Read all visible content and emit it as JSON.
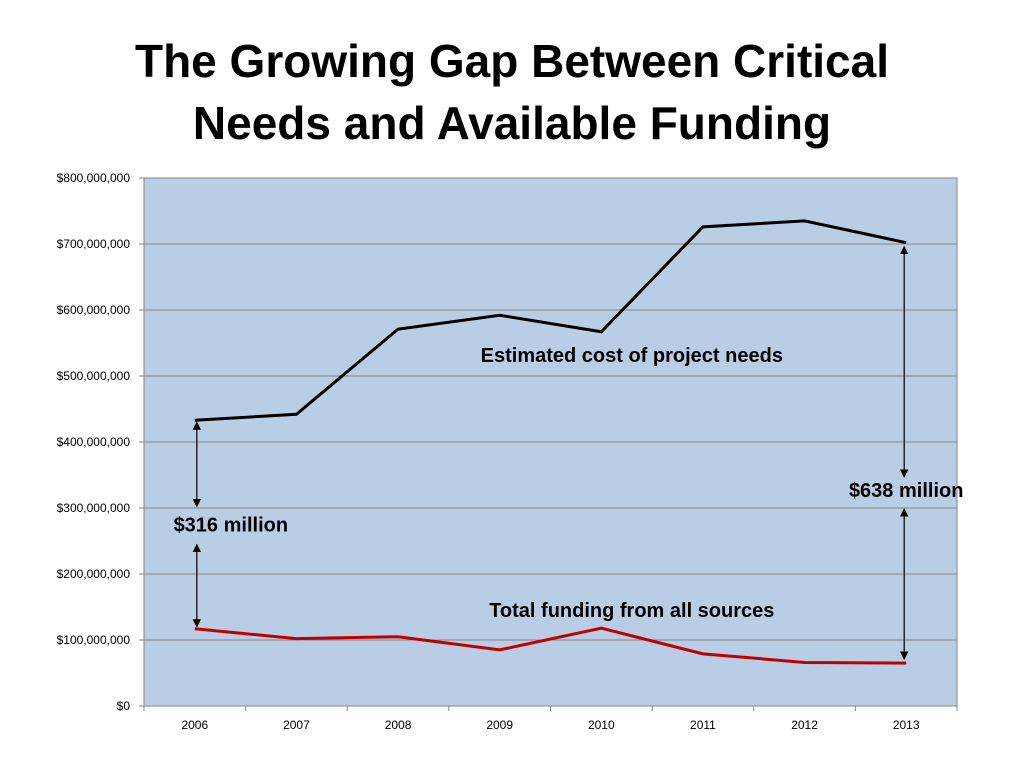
{
  "slide": {
    "title_line1": "The Growing Gap Between Critical",
    "title_line2": "Needs and Available Funding"
  },
  "chart_data": {
    "type": "line",
    "categories": [
      "2006",
      "2007",
      "2008",
      "2009",
      "2010",
      "2011",
      "2012",
      "2013"
    ],
    "series": [
      {
        "name": "Estimated cost of project needs",
        "color": "#000000",
        "values": [
          433000000,
          442000000,
          571000000,
          592000000,
          567000000,
          726000000,
          735000000,
          702000000
        ]
      },
      {
        "name": "Total funding from all sources",
        "color": "#c00000",
        "values": [
          117000000,
          102000000,
          105000000,
          85000000,
          118000000,
          79000000,
          66000000,
          65000000
        ]
      }
    ],
    "ylim": [
      0,
      800000000
    ],
    "yticks": [
      0,
      100000000,
      200000000,
      300000000,
      400000000,
      500000000,
      600000000,
      700000000,
      800000000
    ],
    "ytick_labels": [
      "$0",
      "$100,000,000",
      "$200,000,000",
      "$300,000,000",
      "$400,000,000",
      "$500,000,000",
      "$600,000,000",
      "$700,000,000",
      "$800,000,000"
    ],
    "grid": true,
    "plot_background": "#b9cde5",
    "annotations": {
      "needs_label": "Estimated cost of project needs",
      "funding_label": "Total funding from all sources",
      "gap_2006_label": "$316 million",
      "gap_2013_label": "$638 million"
    }
  }
}
